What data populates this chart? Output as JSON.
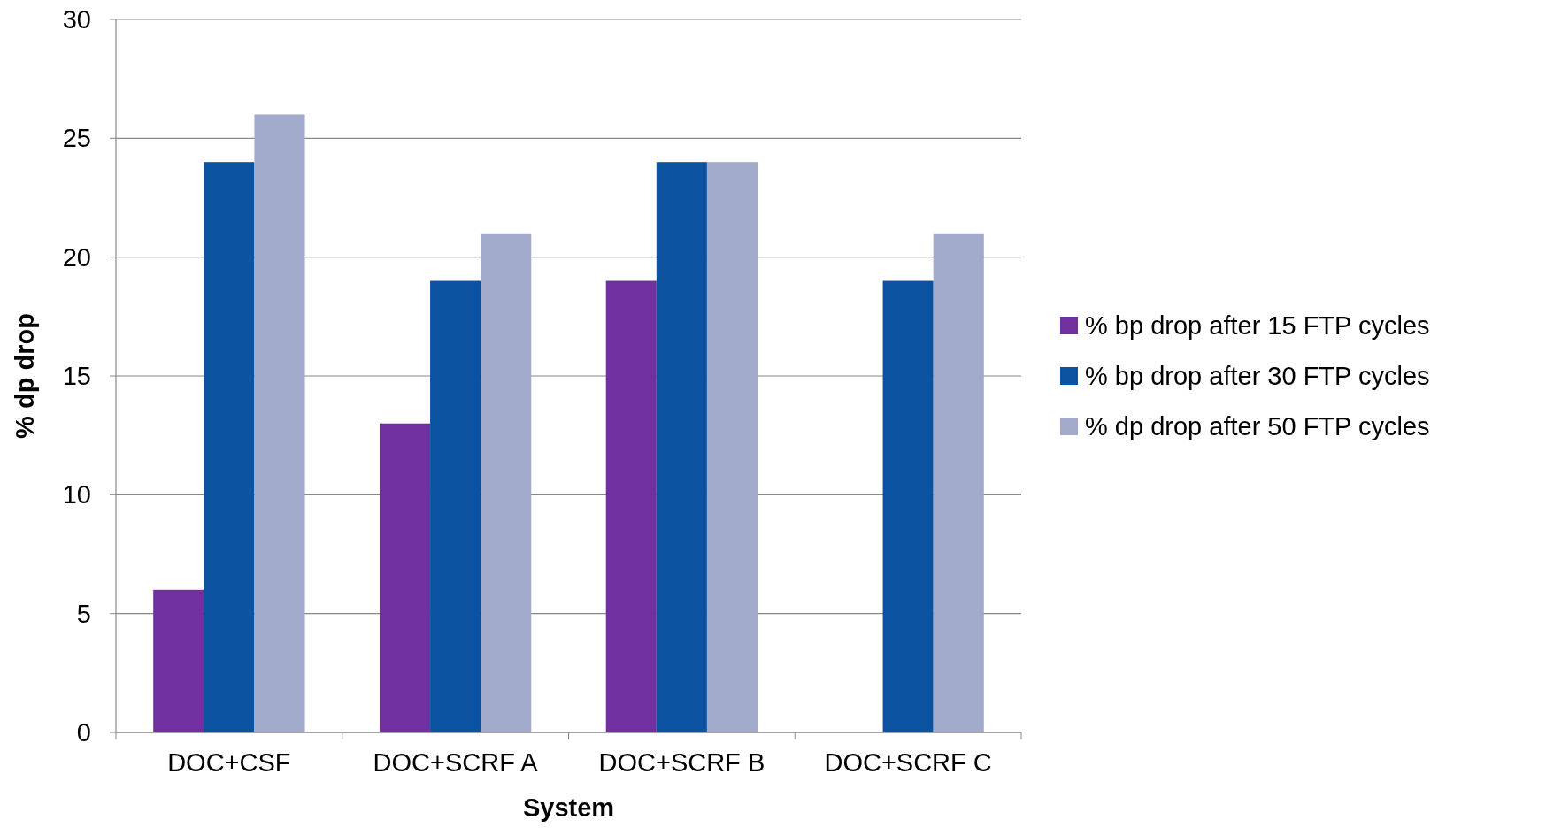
{
  "chart_data": {
    "type": "bar",
    "xlabel": "System",
    "ylabel": "% dp drop",
    "categories": [
      "DOC+CSF",
      "DOC+SCRF A",
      "DOC+SCRF B",
      "DOC+SCRF C"
    ],
    "series": [
      {
        "name": "% bp drop after 15 FTP cycles",
        "color": "#7030a0",
        "values": [
          6,
          13,
          19,
          null
        ]
      },
      {
        "name": "% bp drop after 30 FTP cycles",
        "color": "#0b52a0",
        "values": [
          24,
          19,
          24,
          19
        ]
      },
      {
        "name": "% dp drop after 50 FTP cycles",
        "color": "#a2abcb",
        "values": [
          26,
          21,
          24,
          21
        ]
      }
    ],
    "ylim": [
      0,
      30
    ],
    "yticks": [
      0,
      5,
      10,
      15,
      20,
      25,
      30
    ],
    "grid": "y",
    "legend": "right"
  }
}
